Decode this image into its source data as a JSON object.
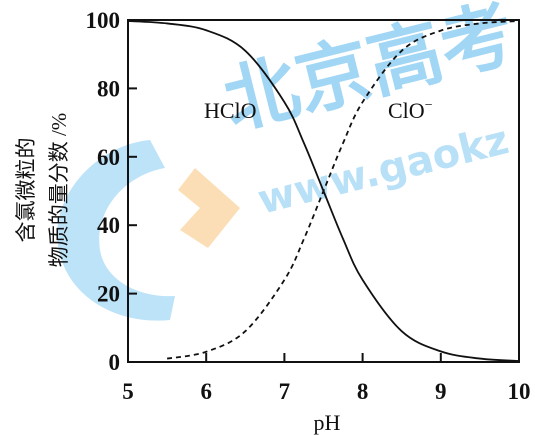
{
  "chart_data": {
    "type": "line",
    "ylabel_line1": "含氯微粒的",
    "ylabel_line2": "物质的量分数 /%",
    "xlabel": "pH",
    "xlim": [
      5,
      10
    ],
    "ylim": [
      0,
      100
    ],
    "xticks": [
      "5",
      "6",
      "7",
      "8",
      "9",
      "10"
    ],
    "yticks": [
      "0",
      "20",
      "40",
      "60",
      "80",
      "100"
    ],
    "grid": false,
    "series": [
      {
        "name": "HClO",
        "style": "solid",
        "x": [
          5.0,
          5.5,
          6.0,
          6.5,
          7.0,
          7.25,
          7.5,
          7.75,
          8.0,
          8.5,
          9.0,
          9.5,
          10.0
        ],
        "y": [
          99.7,
          99.0,
          97.0,
          91.0,
          76.0,
          64.0,
          50.0,
          36.0,
          24.0,
          9.0,
          3.1,
          1.0,
          0.3
        ]
      },
      {
        "name": "ClO⁻",
        "style": "dashed",
        "x": [
          5.5,
          6.0,
          6.5,
          7.0,
          7.25,
          7.5,
          7.75,
          8.0,
          8.5,
          9.0,
          9.5,
          10.0
        ],
        "y": [
          1.0,
          3.0,
          9.0,
          24.0,
          36.0,
          50.0,
          64.0,
          76.0,
          91.0,
          96.9,
          99.0,
          99.7
        ]
      }
    ],
    "annotations": {
      "hclo_label": "HClO",
      "clo_label_base": "ClO",
      "clo_label_sup": "−"
    },
    "watermark": {
      "text": "北京高考",
      "url_text": "www.gaokz",
      "colors": [
        "#1a9be6",
        "#f6b04a"
      ]
    }
  }
}
